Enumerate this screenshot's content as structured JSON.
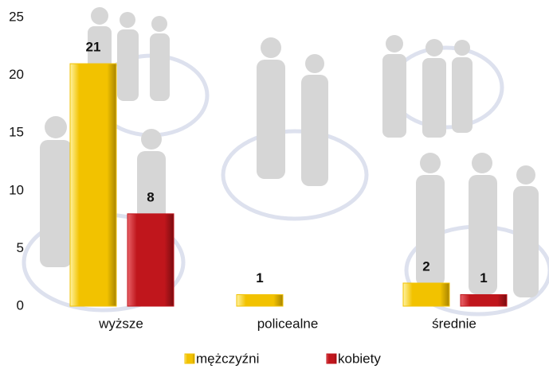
{
  "chart_data": {
    "type": "bar",
    "categories": [
      "wyższe",
      "policealne",
      "średnie"
    ],
    "series": [
      {
        "name": "mężczyźni",
        "color": "#f2c200",
        "values": [
          21,
          1,
          2
        ]
      },
      {
        "name": "kobiety",
        "color": "#c0161c",
        "values": [
          8,
          null,
          1
        ]
      }
    ],
    "ylim": [
      0,
      25
    ],
    "yticks": [
      0,
      5,
      10,
      15,
      20,
      25
    ],
    "grid": false,
    "legend": "bottom"
  }
}
